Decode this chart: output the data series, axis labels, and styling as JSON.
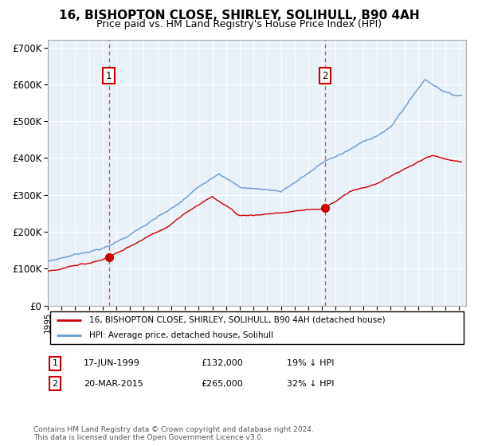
{
  "title": "16, BISHOPTON CLOSE, SHIRLEY, SOLIHULL, B90 4AH",
  "subtitle": "Price paid vs. HM Land Registry's House Price Index (HPI)",
  "ylim": [
    0,
    720000
  ],
  "yticks": [
    0,
    100000,
    200000,
    300000,
    400000,
    500000,
    600000,
    700000
  ],
  "ytick_labels": [
    "£0",
    "£100K",
    "£200K",
    "£300K",
    "£400K",
    "£500K",
    "£600K",
    "£700K"
  ],
  "transaction1": {
    "date_num": 1999.46,
    "price": 132000,
    "label": "1",
    "date_str": "17-JUN-1999",
    "pct": "19% ↓ HPI"
  },
  "transaction2": {
    "date_num": 2015.22,
    "price": 265000,
    "label": "2",
    "date_str": "20-MAR-2015",
    "pct": "32% ↓ HPI"
  },
  "red_line_color": "#cc0000",
  "blue_line_color": "#6699cc",
  "dashed_line_color": "#cc0000",
  "chart_bg_color": "#e8f0f8",
  "background_color": "#ffffff",
  "grid_color": "#ffffff",
  "legend_label_red": "16, BISHOPTON CLOSE, SHIRLEY, SOLIHULL, B90 4AH (detached house)",
  "legend_label_blue": "HPI: Average price, detached house, Solihull",
  "footnote": "Contains HM Land Registry data © Crown copyright and database right 2024.\nThis data is licensed under the Open Government Licence v3.0.",
  "title_fontsize": 11,
  "subtitle_fontsize": 9
}
